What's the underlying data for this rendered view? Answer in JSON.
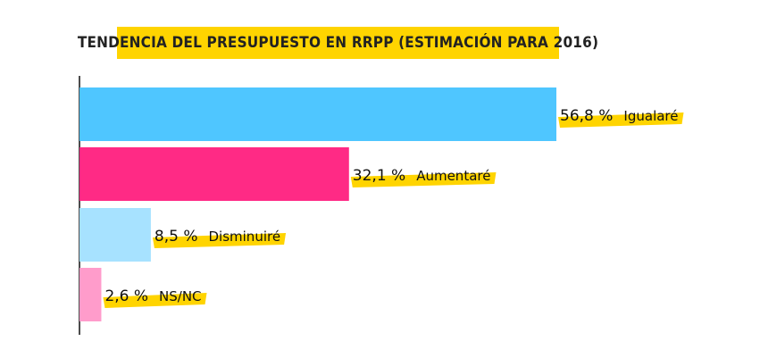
{
  "chart_data": {
    "type": "bar",
    "orientation": "horizontal",
    "title": "TENDENCIA DEL PRESUPUESTO EN RRPP (ESTIMACIÓN PARA 2016)",
    "categories": [
      "Igualaré",
      "Aumentaré",
      "Disminuiré",
      "NS/NC"
    ],
    "values": [
      56.8,
      32.1,
      8.5,
      2.6
    ],
    "value_labels": [
      "56,8 %",
      "32,1 %",
      "8,5 %",
      "2,6 %"
    ],
    "colors": [
      "#4fc6ff",
      "#ff2a85",
      "#a7e2ff",
      "#ff9ccb"
    ],
    "highlight_color": "#ffd400",
    "xlim": [
      0,
      56.8
    ],
    "grid": false,
    "legend": "none"
  }
}
